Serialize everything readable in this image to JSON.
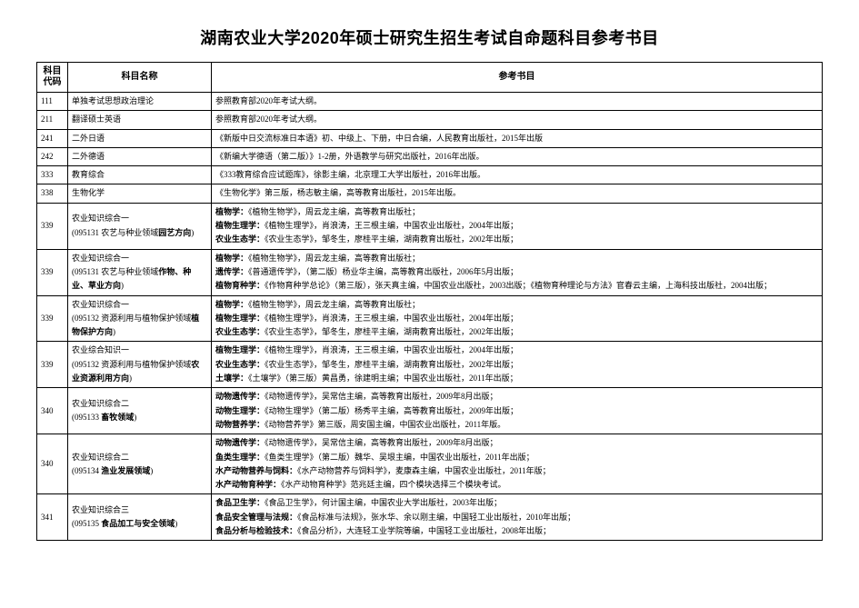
{
  "title": "湖南农业大学2020年硕士研究生招生考试自命题科目参考书目",
  "columns": {
    "code": "科目代码",
    "name": "科目名称",
    "ref": "参考书目"
  },
  "rows": [
    {
      "code": "111",
      "name": "单独考试思想政治理论",
      "refs": [
        "参照教育部2020年考试大纲。"
      ]
    },
    {
      "code": "211",
      "name": "翻译硕士英语",
      "refs": [
        "参照教育部2020年考试大纲。"
      ]
    },
    {
      "code": "241",
      "name": "二外日语",
      "refs": [
        "《新版中日交流标准日本语》初、中级上、下册，中日合编，人民教育出版社，2015年出版"
      ]
    },
    {
      "code": "242",
      "name": "二外德语",
      "refs": [
        "《新编大学德语（第二版）》1-2册，外语教学与研究出版社，2016年出版。"
      ]
    },
    {
      "code": "333",
      "name": "教育综合",
      "refs": [
        "《333教育综合应试题库》，徐影主编，北京理工大学出版社，2016年出版。"
      ]
    },
    {
      "code": "338",
      "name": "生物化学",
      "refs": [
        "《生物化学》第三版，杨志敏主编，高等教育出版社，2015年出版。"
      ]
    },
    {
      "code": "339",
      "name_html": "农业知识综合一<br>(095131 农艺与种业领域<b>园艺方向</b>)",
      "refs_html": [
        "<b>植物学：</b>《植物生物学》，周云龙主编，高等教育出版社；",
        "<b>植物生理学：</b>《植物生理学》，肖浪涛，王三根主编，中国农业出版社，2004年出版；",
        "<b>农业生态学：</b>《农业生态学》，邹冬生，廖桂平主编，湖南教育出版社，2002年出版；"
      ]
    },
    {
      "code": "339",
      "name_html": "农业知识综合一<br>(095131 农艺与种业领域<b>作物、种业、草业方向</b>)",
      "refs_html": [
        "<b>植物学：</b>《植物生物学》，周云龙主编，高等教育出版社；",
        "<b>遗传学：</b>《普通遗传学》，（第二版）杨业华主编，高等教育出版社，2006年5月出版；",
        "<b>植物育种学：</b>《作物育种学总论》（第三版），张天真主编，中国农业出版社，2003出版；《植物育种理论与方法》官春云主编，上海科技出版社，2004出版；"
      ]
    },
    {
      "code": "339",
      "name_html": "农业知识综合一<br>(095132 资源利用与植物保护领域<b>植物保护方向</b>)",
      "refs_html": [
        "<b>植物学：</b>《植物生物学》，周云龙主编，高等教育出版社；",
        "<b>植物生理学：</b>《植物生理学》，肖浪涛，王三根主编，中国农业出版社，2004年出版；",
        "<b>农业生态学：</b>《农业生态学》，邹冬生，廖桂平主编，湖南教育出版社，2002年出版；"
      ]
    },
    {
      "code": "339",
      "name_html": "农业综合知识一<br>(095132 资源利用与植物保护领域<b>农业资源利用方向</b>)",
      "refs_html": [
        "<b>植物生理学：</b>《植物生理学》，肖浪涛，王三根主编，中国农业出版社，2004年出版；",
        "<b>农业生态学：</b>《农业生态学》，邹冬生，廖桂平主编，湖南教育出版社，2002年出版；",
        "<b>土壤学：</b>《土壤学》（第三版）黄昌勇，徐建明主编；中国农业出版社，2011年出版；"
      ]
    },
    {
      "code": "340",
      "name_html": "农业知识综合二<br>(095133 <b>畜牧领域</b>)",
      "refs_html": [
        "<b>动物遗传学：</b>《动物遗传学》，吴常信主编，高等教育出版社，2009年8月出版；",
        "<b>动物生理学：</b>《动物生理学》（第二版）杨秀平主编，高等教育出版社，2009年出版；",
        "<b>动物营养学：</b>《动物营养学》第三版，周安国主编，中国农业出版社，2011年版。"
      ]
    },
    {
      "code": "340",
      "name_html": "农业知识综合二<br>(095134 <b>渔业发展领域</b>)",
      "refs_html": [
        "<b>动物遗传学：</b>《动物遗传学》，吴常信主编，高等教育出版社，2009年8月出版；",
        "<b>鱼类生理学：</b>《鱼类生理学》（第二版）魏华、吴垠主编，中国农业出版社，2011年出版；",
        "<b>水产动物营养与饲料：</b>《水产动物营养与饲料学》，麦康森主编，中国农业出版社，2011年版；",
        "<b>水产动物育种学：</b>《水产动物育种学》范兆廷主编，四个模块选择三个模块考试。"
      ]
    },
    {
      "code": "341",
      "name_html": "农业知识综合三<br>(095135 <b>食品加工与安全领域</b>)",
      "refs_html": [
        "<b>食品卫生学：</b>《食品卫生学》，何计国主编，中国农业大学出版社，2003年出版；",
        "<b>食品安全管理与法规：</b>《食品标准与法规》，张水华、余以刚主编，中国轻工业出版社，2010年出版；",
        "<b>食品分析与检验技术：</b>《食品分析》，大连轻工业学院等编，中国轻工业出版社，2008年出版；"
      ]
    }
  ]
}
